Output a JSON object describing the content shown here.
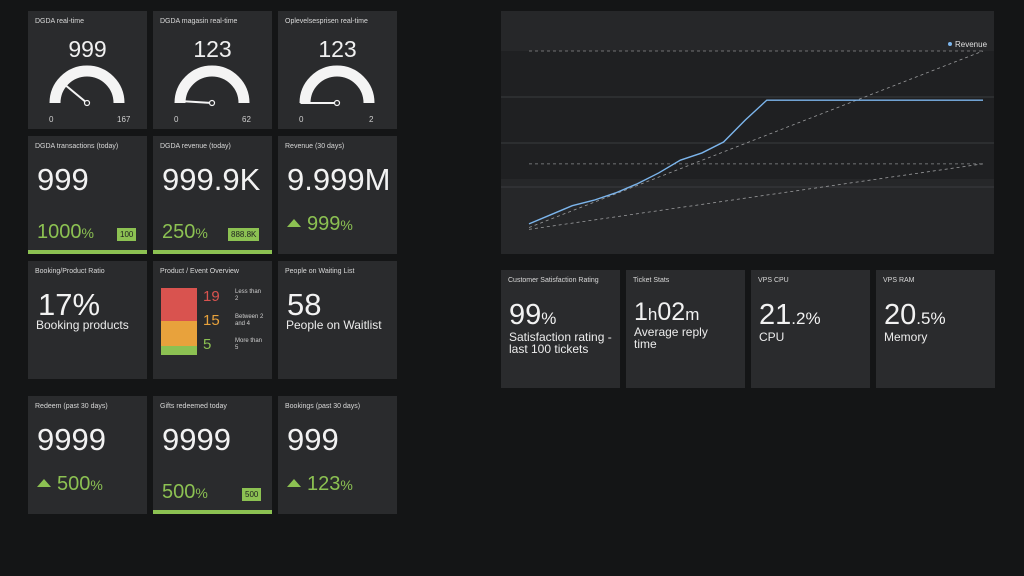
{
  "gauges": [
    {
      "title": "DGDA real-time",
      "value": "999",
      "min": "0",
      "max": "167",
      "fraction": 0.22
    },
    {
      "title": "DGDA magasin real-time",
      "value": "123",
      "min": "0",
      "max": "62",
      "fraction": 0.02
    },
    {
      "title": "Oplevelsesprisen real-time",
      "value": "123",
      "min": "0",
      "max": "2",
      "fraction": 0.0
    }
  ],
  "row2": [
    {
      "title": "DGDA transactions (today)",
      "value": "999",
      "change": "1000",
      "change_unit": "%",
      "badge": "100"
    },
    {
      "title": "DGDA revenue (today)",
      "value": "999.9K",
      "change": "250",
      "change_unit": "%",
      "badge": "888.8K"
    },
    {
      "title": "Revenue (30 days)",
      "value": "9.999M",
      "change": "999",
      "change_unit": "%"
    }
  ],
  "booking_ratio": {
    "title": "Booking/Product Ratio",
    "value": "17%",
    "label": "Booking products"
  },
  "product_overview": {
    "title": "Product / Event Overview",
    "rows": [
      {
        "count": "19",
        "label": "Less than 2",
        "color": "#d9534f"
      },
      {
        "count": "15",
        "label": "Between 2 and 4",
        "color": "#e8a23c"
      },
      {
        "count": "5",
        "label": "More than 5",
        "color": "#8cc152"
      }
    ]
  },
  "waiting_list": {
    "title": "People on Waiting List",
    "value": "58",
    "label": "People on Waitlist"
  },
  "row4": [
    {
      "title": "Redeem (past 30 days)",
      "value": "9999",
      "change": "500",
      "change_unit": "%"
    },
    {
      "title": "Gifts redeemed today",
      "value": "9999",
      "change": "500",
      "change_unit": "%",
      "badge": "500"
    },
    {
      "title": "Bookings (past 30 days)",
      "value": "999",
      "change": "123",
      "change_unit": "%"
    }
  ],
  "chart_data": {
    "type": "line",
    "legend": "Revenue",
    "legend_position": "top-right",
    "series": [
      {
        "name": "Revenue",
        "values": [
          0.05,
          0.1,
          0.15,
          0.18,
          0.22,
          0.27,
          0.33,
          0.4,
          0.44,
          0.5,
          0.62,
          0.73,
          0.73,
          0.73,
          0.73,
          0.73,
          0.73,
          0.73,
          0.73,
          0.73,
          0.73,
          0.73
        ]
      }
    ],
    "trend_lines": [
      {
        "from": 0.03,
        "to": 1.0
      },
      {
        "from": 0.02,
        "to": 0.38
      }
    ],
    "reference_lines": [
      1.0,
      0.38
    ],
    "color": "#7cb5ec"
  },
  "stats": [
    {
      "title": "Customer Satisfaction Rating",
      "value": "99",
      "unit": "%",
      "sub": "Satisfaction rating - last 100 tickets"
    },
    {
      "title": "Ticket Stats",
      "value": "1",
      "unit": "h",
      "value2": "02",
      "unit2": "m",
      "sub": "Average reply time"
    },
    {
      "title": "VPS CPU",
      "value": "21",
      "unit": ".2%",
      "sub": "CPU"
    },
    {
      "title": "VPS RAM",
      "value": "20",
      "unit": ".5%",
      "sub": "Memory"
    }
  ]
}
